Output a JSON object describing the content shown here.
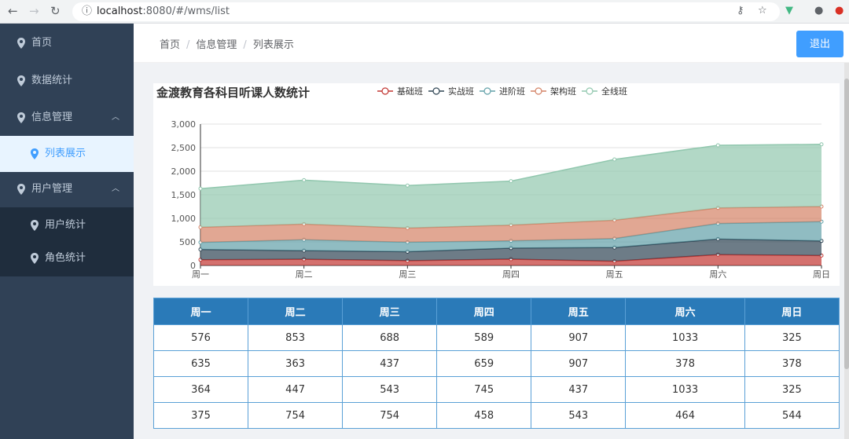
{
  "browser": {
    "url_host": "localhost",
    "url_path": ":8080/#/wms/list"
  },
  "sidebar": {
    "items": [
      {
        "label": "首页"
      },
      {
        "label": "数据统计"
      },
      {
        "label": "信息管理"
      },
      {
        "label": "列表展示"
      },
      {
        "label": "用户管理"
      },
      {
        "label": "用户统计"
      },
      {
        "label": "角色统计"
      }
    ]
  },
  "header": {
    "breadcrumb": [
      "首页",
      "信息管理",
      "列表展示"
    ],
    "logout_label": "退出"
  },
  "chart_data": {
    "type": "area",
    "title": "金渡教育各科目听课人数统计",
    "categories": [
      "周一",
      "周二",
      "周三",
      "周四",
      "周五",
      "周六",
      "周日"
    ],
    "ylim": [
      0,
      3000
    ],
    "yticks": [
      "0",
      "500",
      "1,000",
      "1,500",
      "2,000",
      "2,500",
      "3,000"
    ],
    "stacked": true,
    "legend_position": "top",
    "series": [
      {
        "name": "基础班",
        "color": "#c23531",
        "values": [
          120,
          132,
          101,
          134,
          90,
          230,
          210
        ]
      },
      {
        "name": "实战班",
        "color": "#2f4554",
        "values": [
          220,
          182,
          191,
          234,
          290,
          330,
          310
        ]
      },
      {
        "name": "进阶班",
        "color": "#61a0a8",
        "values": [
          150,
          232,
          201,
          154,
          190,
          330,
          410
        ]
      },
      {
        "name": "架构班",
        "color": "#d48265",
        "values": [
          320,
          332,
          301,
          334,
          390,
          330,
          320
        ]
      },
      {
        "name": "全线班",
        "color": "#91c7ae",
        "values": [
          820,
          932,
          901,
          934,
          1290,
          1330,
          1320
        ]
      }
    ]
  },
  "table": {
    "headers": [
      "周一",
      "周二",
      "周三",
      "周四",
      "周五",
      "周六",
      "周日"
    ],
    "rows": [
      [
        "576",
        "853",
        "688",
        "589",
        "907",
        "1033",
        "325"
      ],
      [
        "635",
        "363",
        "437",
        "659",
        "907",
        "378",
        "378"
      ],
      [
        "364",
        "447",
        "543",
        "745",
        "437",
        "1033",
        "325"
      ],
      [
        "375",
        "754",
        "754",
        "458",
        "543",
        "464",
        "544"
      ]
    ]
  }
}
